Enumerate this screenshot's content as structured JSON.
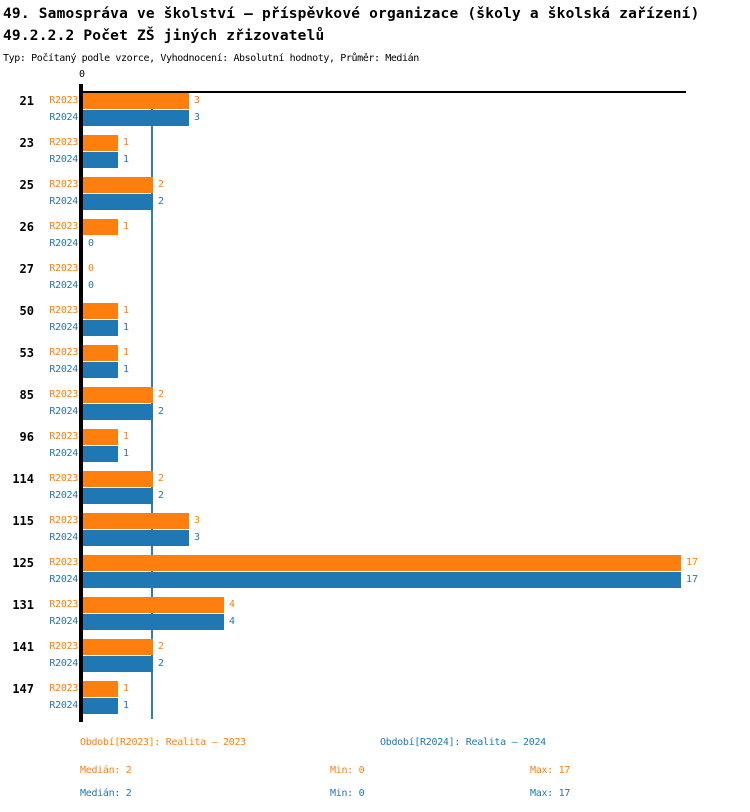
{
  "page": {
    "title": "49. Samospráva ve školství – příspěvkové organizace (školy a školská zařízení)",
    "subtitle": "49.2.2.2 Počet ZŠ jiných zřizovatelů",
    "type_line": "Typ: Počítaný podle vzorce, Vyhodnocení: Absolutní hodnoty, Průměr: Medián"
  },
  "axis": {
    "zero_label": "0",
    "median_line_value": 2
  },
  "colors": {
    "r2023_orange": "#FF7F0E",
    "r2024_blue": "#1F77B4",
    "median_line_blue": "#2E7EB5",
    "axis_black": "#000000"
  },
  "chart_data": {
    "type": "bar",
    "orientation": "horizontal",
    "title": "49.2.2.2 Počet ZŠ jiných zřizovatelů",
    "categories": [
      "21",
      "23",
      "25",
      "26",
      "27",
      "50",
      "53",
      "85",
      "96",
      "114",
      "115",
      "125",
      "131",
      "141",
      "147"
    ],
    "series": [
      {
        "name": "R2023",
        "color": "#FF7F0E",
        "values": [
          3,
          1,
          2,
          1,
          0,
          1,
          1,
          2,
          1,
          2,
          3,
          17,
          4,
          2,
          1
        ],
        "median": 2,
        "min": 0,
        "max": 17
      },
      {
        "name": "R2024",
        "color": "#1F77B4",
        "values": [
          3,
          1,
          2,
          0,
          0,
          1,
          1,
          2,
          1,
          2,
          3,
          17,
          4,
          2,
          1
        ],
        "median": 2,
        "min": 0,
        "max": 17
      }
    ],
    "value_range": [
      0,
      17
    ],
    "x_tick_labels": [
      "0"
    ],
    "median_line_value": 2,
    "grid": false,
    "legend_position": "bottom"
  },
  "legend": {
    "r2023_label": "Období[R2023]: Realita – 2023",
    "r2024_label": "Období[R2024]: Realita – 2024"
  },
  "stats": {
    "r2023": {
      "median": "Medián: 2",
      "min": "Min: 0",
      "max": "Max: 17"
    },
    "r2024": {
      "median": "Medián: 2",
      "min": "Min: 0",
      "max": "Max: 17"
    }
  }
}
